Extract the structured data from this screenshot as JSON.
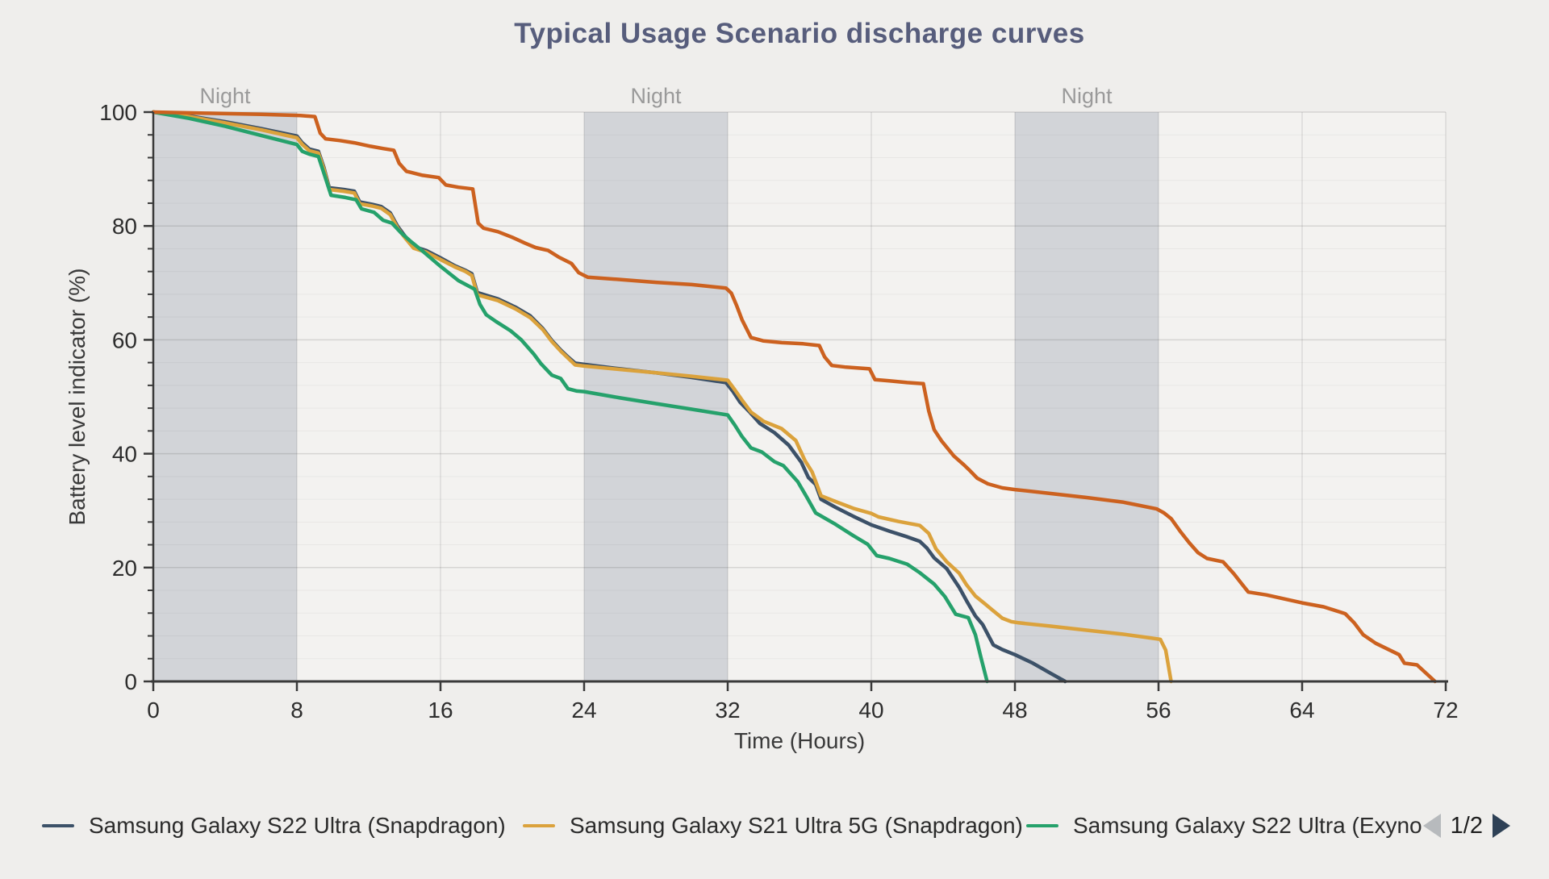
{
  "page": {
    "title": "Typical Usage Scenario discharge curves"
  },
  "chart_data": {
    "type": "line",
    "title": "Typical Usage Scenario discharge curves",
    "xlabel": "Time (Hours)",
    "ylabel": "Battery level indicator (%)",
    "x_axis": {
      "min": 0,
      "max": 72,
      "major_tick": 8
    },
    "y_axis": {
      "min": 0,
      "max": 100,
      "major_tick": 20,
      "minor_tick": 4
    },
    "grid": "on",
    "night_bands": {
      "label": "Night",
      "ranges": [
        [
          0,
          8
        ],
        [
          24,
          32
        ],
        [
          48,
          56
        ]
      ]
    },
    "series": [
      {
        "name": "Samsung Galaxy S22 Ultra (Snapdragon)",
        "color": "#3c5168",
        "points": [
          [
            0,
            100
          ],
          [
            2,
            99.3
          ],
          [
            4,
            98.3
          ],
          [
            6,
            97.1
          ],
          [
            8,
            95.8
          ],
          [
            8.3,
            94.6
          ],
          [
            8.7,
            93.5
          ],
          [
            9.2,
            93.1
          ],
          [
            9.5,
            90.3
          ],
          [
            9.8,
            86.7
          ],
          [
            10.6,
            86.4
          ],
          [
            11.2,
            86.1
          ],
          [
            11.5,
            84.2
          ],
          [
            12.2,
            83.8
          ],
          [
            12.7,
            83.4
          ],
          [
            13.2,
            82.3
          ],
          [
            13.6,
            80
          ],
          [
            14,
            78.3
          ],
          [
            14.5,
            76.4
          ],
          [
            15.2,
            75.7
          ],
          [
            16,
            74.4
          ],
          [
            16.8,
            73
          ],
          [
            17.4,
            72.2
          ],
          [
            17.75,
            71.6
          ],
          [
            18.05,
            68.3
          ],
          [
            19.2,
            67.2
          ],
          [
            20.2,
            65.7
          ],
          [
            21,
            64.2
          ],
          [
            21.7,
            62
          ],
          [
            22.2,
            59.9
          ],
          [
            22.7,
            58.2
          ],
          [
            23.1,
            57
          ],
          [
            23.5,
            55.9
          ],
          [
            24,
            55.7
          ],
          [
            26,
            54.9
          ],
          [
            28,
            54.2
          ],
          [
            30,
            53.4
          ],
          [
            31.9,
            52.5
          ],
          [
            32.3,
            50.9
          ],
          [
            32.7,
            49
          ],
          [
            33.2,
            47.4
          ],
          [
            33.8,
            45.3
          ],
          [
            34.6,
            43.7
          ],
          [
            35.4,
            41.5
          ],
          [
            36.1,
            38.5
          ],
          [
            36.5,
            35.8
          ],
          [
            36.9,
            34.6
          ],
          [
            37.2,
            32
          ],
          [
            38,
            30.6
          ],
          [
            39,
            29
          ],
          [
            40,
            27.5
          ],
          [
            41,
            26.4
          ],
          [
            42,
            25.4
          ],
          [
            42.7,
            24.6
          ],
          [
            43.1,
            23.4
          ],
          [
            43.5,
            21.7
          ],
          [
            44.2,
            19.8
          ],
          [
            44.9,
            16.5
          ],
          [
            45.3,
            14.2
          ],
          [
            45.8,
            11.5
          ],
          [
            46.2,
            10
          ],
          [
            46.8,
            6.4
          ],
          [
            47.3,
            5.6
          ],
          [
            48,
            4.7
          ],
          [
            49,
            3.2
          ],
          [
            50,
            1.4
          ],
          [
            50.8,
            0
          ]
        ]
      },
      {
        "name": "Samsung Galaxy S21 Ultra 5G (Snapdragon)",
        "color": "#dba23c",
        "points": [
          [
            0,
            100
          ],
          [
            2,
            99.2
          ],
          [
            4,
            98.1
          ],
          [
            6,
            96.9
          ],
          [
            8,
            95.5
          ],
          [
            8.3,
            94.3
          ],
          [
            8.7,
            93.2
          ],
          [
            9.2,
            92.8
          ],
          [
            9.5,
            90
          ],
          [
            9.8,
            86.4
          ],
          [
            10.6,
            86.1
          ],
          [
            11.2,
            85.8
          ],
          [
            11.5,
            83.9
          ],
          [
            12.2,
            83.5
          ],
          [
            12.7,
            83.1
          ],
          [
            13.2,
            82
          ],
          [
            13.6,
            79.7
          ],
          [
            14,
            78
          ],
          [
            14.5,
            76.1
          ],
          [
            15.2,
            75.4
          ],
          [
            16,
            74.1
          ],
          [
            16.8,
            72.8
          ],
          [
            17.4,
            72
          ],
          [
            17.75,
            71.3
          ],
          [
            18.05,
            67.9
          ],
          [
            19.2,
            66.9
          ],
          [
            20.2,
            65.4
          ],
          [
            21,
            63.9
          ],
          [
            21.7,
            61.8
          ],
          [
            22.2,
            59.7
          ],
          [
            22.7,
            58
          ],
          [
            23.1,
            56.8
          ],
          [
            23.5,
            55.6
          ],
          [
            24,
            55.4
          ],
          [
            26,
            54.8
          ],
          [
            28,
            54.2
          ],
          [
            30,
            53.6
          ],
          [
            32,
            52.9
          ],
          [
            32.4,
            51.2
          ],
          [
            32.8,
            49.4
          ],
          [
            33.3,
            47.3
          ],
          [
            34,
            45.7
          ],
          [
            35,
            44.4
          ],
          [
            35.8,
            42.3
          ],
          [
            36.3,
            38.8
          ],
          [
            36.7,
            36.8
          ],
          [
            37.2,
            32.6
          ],
          [
            38,
            31.6
          ],
          [
            39,
            30.4
          ],
          [
            40,
            29.5
          ],
          [
            40.4,
            28.9
          ],
          [
            41.5,
            28.1
          ],
          [
            42.7,
            27.4
          ],
          [
            43.2,
            26
          ],
          [
            43.6,
            23.3
          ],
          [
            44.2,
            21
          ],
          [
            44.9,
            19
          ],
          [
            45.3,
            17
          ],
          [
            45.8,
            15
          ],
          [
            46.3,
            13.7
          ],
          [
            46.8,
            12.4
          ],
          [
            47.3,
            11.1
          ],
          [
            47.8,
            10.5
          ],
          [
            48.2,
            10.3
          ],
          [
            50,
            9.7
          ],
          [
            52,
            9
          ],
          [
            54,
            8.3
          ],
          [
            55.4,
            7.7
          ],
          [
            56.1,
            7.4
          ],
          [
            56.4,
            5.5
          ],
          [
            56.7,
            0
          ]
        ]
      },
      {
        "name": "Samsung Galaxy S22 Ultra (Exyno",
        "color": "#25a16b",
        "points": [
          [
            0,
            100
          ],
          [
            2,
            98.9
          ],
          [
            4,
            97.5
          ],
          [
            6,
            95.9
          ],
          [
            8,
            94.3
          ],
          [
            8.3,
            93.1
          ],
          [
            8.7,
            92.6
          ],
          [
            9.2,
            92.2
          ],
          [
            9.5,
            89.3
          ],
          [
            9.9,
            85.4
          ],
          [
            10.7,
            85
          ],
          [
            11.3,
            84.6
          ],
          [
            11.6,
            83
          ],
          [
            12.3,
            82.4
          ],
          [
            12.8,
            81
          ],
          [
            13.3,
            80.5
          ],
          [
            13.8,
            78.8
          ],
          [
            14.3,
            77.4
          ],
          [
            15,
            75.6
          ],
          [
            16,
            72.9
          ],
          [
            17,
            70.4
          ],
          [
            17.9,
            68.9
          ],
          [
            18.2,
            66.2
          ],
          [
            18.55,
            64.4
          ],
          [
            19.1,
            63.2
          ],
          [
            19.9,
            61.6
          ],
          [
            20.5,
            60
          ],
          [
            21.2,
            57.5
          ],
          [
            21.6,
            55.8
          ],
          [
            22.2,
            53.8
          ],
          [
            22.7,
            53.2
          ],
          [
            23.1,
            51.4
          ],
          [
            23.6,
            51
          ],
          [
            24,
            50.9
          ],
          [
            26,
            49.8
          ],
          [
            28,
            48.8
          ],
          [
            30,
            47.8
          ],
          [
            32,
            46.8
          ],
          [
            32.4,
            45
          ],
          [
            32.8,
            43
          ],
          [
            33.3,
            41
          ],
          [
            33.9,
            40.3
          ],
          [
            34.6,
            38.6
          ],
          [
            35.1,
            37.9
          ],
          [
            35.9,
            35.1
          ],
          [
            36.4,
            32.4
          ],
          [
            36.9,
            29.6
          ],
          [
            38,
            27.6
          ],
          [
            39,
            25.6
          ],
          [
            39.8,
            24.1
          ],
          [
            40.3,
            22.1
          ],
          [
            41,
            21.6
          ],
          [
            42,
            20.6
          ],
          [
            42.7,
            19.1
          ],
          [
            43.5,
            17.1
          ],
          [
            44.1,
            14.9
          ],
          [
            44.7,
            11.8
          ],
          [
            45.4,
            11.2
          ],
          [
            45.8,
            8.2
          ],
          [
            46.1,
            4.3
          ],
          [
            46.45,
            0
          ]
        ]
      },
      {
        "name": "",
        "color": "#cc611f",
        "points": [
          [
            0,
            100
          ],
          [
            3,
            99.8
          ],
          [
            6,
            99.6
          ],
          [
            8.2,
            99.4
          ],
          [
            9,
            99.2
          ],
          [
            9.3,
            96.3
          ],
          [
            9.6,
            95.3
          ],
          [
            10.4,
            95
          ],
          [
            11.2,
            94.6
          ],
          [
            12.1,
            94
          ],
          [
            12.8,
            93.6
          ],
          [
            13.4,
            93.3
          ],
          [
            13.7,
            91
          ],
          [
            14.1,
            89.6
          ],
          [
            15,
            88.9
          ],
          [
            15.9,
            88.5
          ],
          [
            16.3,
            87.2
          ],
          [
            17,
            86.8
          ],
          [
            17.8,
            86.5
          ],
          [
            18.1,
            80.5
          ],
          [
            18.4,
            79.6
          ],
          [
            19.2,
            79
          ],
          [
            20,
            78
          ],
          [
            20.7,
            77
          ],
          [
            21.3,
            76.2
          ],
          [
            22,
            75.7
          ],
          [
            22.6,
            74.5
          ],
          [
            23.3,
            73.4
          ],
          [
            23.7,
            71.8
          ],
          [
            24.2,
            71
          ],
          [
            26,
            70.6
          ],
          [
            28,
            70.1
          ],
          [
            30,
            69.7
          ],
          [
            31.9,
            69.1
          ],
          [
            32.2,
            68.2
          ],
          [
            32.5,
            66
          ],
          [
            32.8,
            63.5
          ],
          [
            33.3,
            60.4
          ],
          [
            34,
            59.8
          ],
          [
            35,
            59.5
          ],
          [
            36.2,
            59.3
          ],
          [
            37.1,
            59
          ],
          [
            37.4,
            57
          ],
          [
            37.8,
            55.5
          ],
          [
            38.6,
            55.2
          ],
          [
            39.9,
            54.9
          ],
          [
            40.2,
            53
          ],
          [
            41,
            52.8
          ],
          [
            42,
            52.5
          ],
          [
            42.9,
            52.3
          ],
          [
            43.2,
            47.5
          ],
          [
            43.5,
            44.2
          ],
          [
            43.9,
            42.3
          ],
          [
            44.6,
            39.6
          ],
          [
            45.1,
            38.2
          ],
          [
            45.5,
            37
          ],
          [
            45.9,
            35.7
          ],
          [
            46.5,
            34.7
          ],
          [
            47.3,
            34
          ],
          [
            48,
            33.7
          ],
          [
            50,
            33
          ],
          [
            52,
            32.3
          ],
          [
            54,
            31.5
          ],
          [
            55.9,
            30.3
          ],
          [
            56.3,
            29.6
          ],
          [
            56.7,
            28.6
          ],
          [
            57.2,
            26.4
          ],
          [
            57.7,
            24.4
          ],
          [
            58.2,
            22.6
          ],
          [
            58.7,
            21.6
          ],
          [
            59.6,
            21
          ],
          [
            60.2,
            18.9
          ],
          [
            60.6,
            17.3
          ],
          [
            61,
            15.7
          ],
          [
            62,
            15.2
          ],
          [
            64,
            13.8
          ],
          [
            65.2,
            13.1
          ],
          [
            66.4,
            11.9
          ],
          [
            66.9,
            10.3
          ],
          [
            67.4,
            8.2
          ],
          [
            68.1,
            6.7
          ],
          [
            69.4,
            4.7
          ],
          [
            69.7,
            3.2
          ],
          [
            70.4,
            2.9
          ],
          [
            71.4,
            0
          ]
        ]
      }
    ],
    "legend": {
      "position": "bottom",
      "items": [
        {
          "label": "Samsung Galaxy S22 Ultra (Snapdragon)",
          "color": "#3c5168"
        },
        {
          "label": "Samsung Galaxy S21 Ultra 5G (Snapdragon)",
          "color": "#dba23c"
        },
        {
          "label": "Samsung Galaxy S22 Ultra (Exyno",
          "color": "#25a16b"
        }
      ],
      "pagination": {
        "label": "1/2",
        "prev_color": "#b7babd",
        "next_color": "#2e4156"
      }
    },
    "style": {
      "page_bg": "#efeeec",
      "plot_bg": "#f3f2f0",
      "band_color": "#d2d4d8",
      "grid_minor": "rgba(60,60,60,0.06)",
      "grid_major": "rgba(60,60,60,0.16)",
      "grid_vertical": "rgba(60,60,60,0.13)",
      "axis_color": "#3a3a3a",
      "tick_label_color": "#2d2d2d",
      "night_label_color": "#9a9a9a",
      "line_width": 4.5
    }
  }
}
